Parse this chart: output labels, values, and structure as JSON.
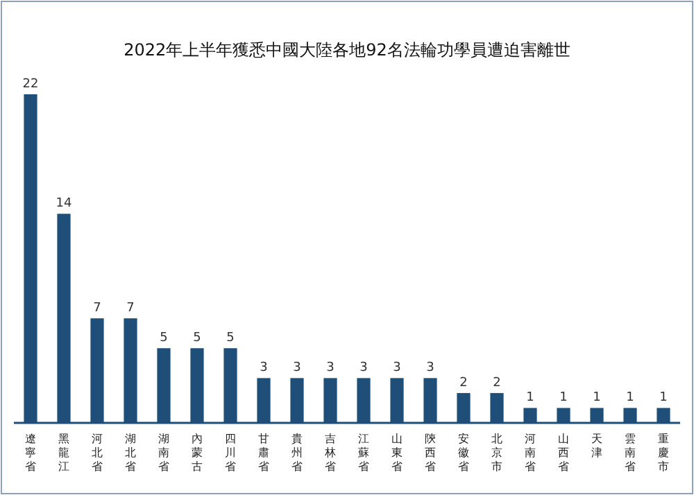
{
  "chart_data": {
    "type": "bar",
    "title": "2022年上半年獲悉中國大陸各地92名法輪功學員遭迫害離世",
    "categories": [
      "遼寧省",
      "黑龍江",
      "河北省",
      "湖北省",
      "湖南省",
      "內蒙古",
      "四川省",
      "甘肅省",
      "貴州省",
      "吉林省",
      "江蘇省",
      "山東省",
      "陝西省",
      "安徽省",
      "北京市",
      "河南省",
      "山西省",
      "天津",
      "雲南省",
      "重慶市"
    ],
    "values": [
      22,
      14,
      7,
      7,
      5,
      5,
      5,
      3,
      3,
      3,
      3,
      3,
      3,
      2,
      2,
      1,
      1,
      1,
      1,
      1
    ],
    "color": "#1f4e79",
    "data_labels": true
  }
}
